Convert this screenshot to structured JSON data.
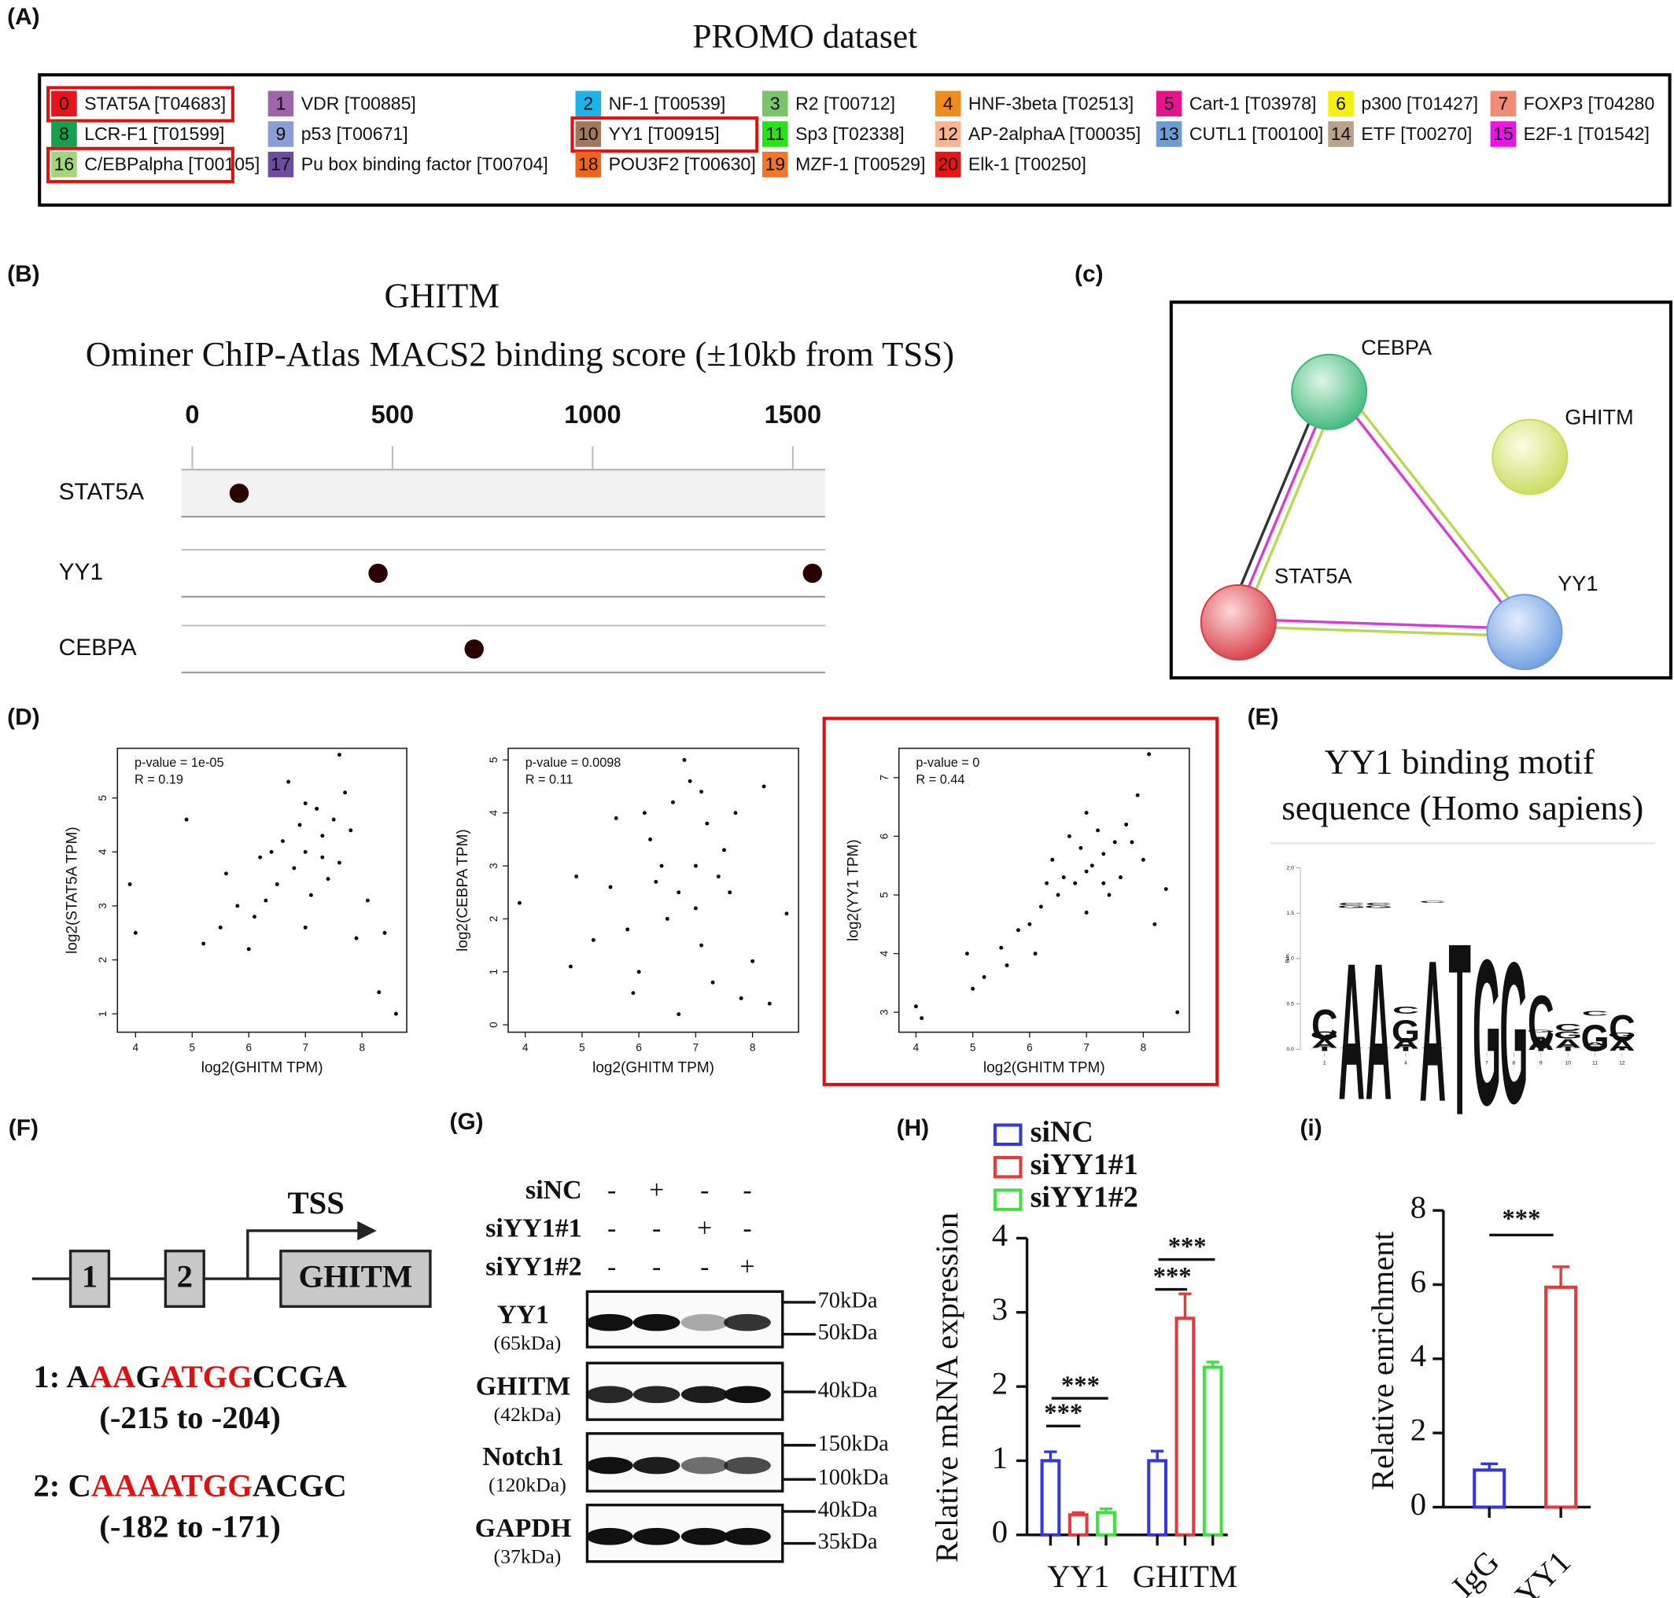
{
  "panel_labels": [
    "(A)",
    "(B)",
    "(c)",
    "(D)",
    "(E)",
    "(F)",
    "(G)",
    "(H)",
    "(i)"
  ],
  "promo": {
    "title": "PROMO dataset",
    "items": [
      {
        "number": 0,
        "label": "STAT5A [T04683]",
        "color": "#e8141c",
        "highlight": true
      },
      {
        "number": 1,
        "label": "VDR [T00885]",
        "color": "#9e65a8",
        "highlight": false
      },
      {
        "number": 2,
        "label": "NF-1 [T00539]",
        "color": "#1cb4e8",
        "highlight": false
      },
      {
        "number": 3,
        "label": "R2 [T00712]",
        "color": "#7cc46c",
        "highlight": false
      },
      {
        "number": 4,
        "label": "HNF-3beta [T02513]",
        "color": "#f08c1c",
        "highlight": false
      },
      {
        "number": 5,
        "label": "Cart-1 [T03978]",
        "color": "#e4148c",
        "highlight": false
      },
      {
        "number": 6,
        "label": "p300 [T01427]",
        "color": "#f4f014",
        "highlight": false
      },
      {
        "number": 7,
        "label": "FOXP3 [T04280",
        "color": "#f08c78",
        "highlight": false
      },
      {
        "number": 8,
        "label": "LCR-F1 [T01599]",
        "color": "#14a04c",
        "highlight": false
      },
      {
        "number": 9,
        "label": "p53 [T00671]",
        "color": "#8c9cd4",
        "highlight": false
      },
      {
        "number": 10,
        "label": "YY1 [T00915]",
        "color": "#a0785c",
        "highlight": true
      },
      {
        "number": 11,
        "label": "Sp3 [T02338]",
        "color": "#28e01c",
        "highlight": false
      },
      {
        "number": 12,
        "label": "AP-2alphaA [T00035]",
        "color": "#f8b494",
        "highlight": false
      },
      {
        "number": 13,
        "label": "CUTL1 [T00100]",
        "color": "#6c9cd4",
        "highlight": false
      },
      {
        "number": 14,
        "label": "ETF [T00270]",
        "color": "#b8a48c",
        "highlight": false
      },
      {
        "number": 15,
        "label": "E2F-1 [T01542]",
        "color": "#e814e8",
        "highlight": false
      },
      {
        "number": 16,
        "label": "C/EBPalpha [T00105]",
        "color": "#a4d47c",
        "highlight": true
      },
      {
        "number": 17,
        "label": "Pu box binding factor [T00704]",
        "color": "#6c4c9c",
        "highlight": false
      },
      {
        "number": 18,
        "label": "POU3F2 [T00630]",
        "color": "#f0641c",
        "highlight": false
      },
      {
        "number": 19,
        "label": "MZF-1 [T00529]",
        "color": "#f0782c",
        "highlight": false
      },
      {
        "number": 20,
        "label": "Elk-1 [T00250]",
        "color": "#e81414",
        "highlight": false
      }
    ]
  },
  "network": {
    "nodes": [
      {
        "label": "CEBPA",
        "color": "#3cb878"
      },
      {
        "label": "GHITM",
        "color": "#c8dc5a"
      },
      {
        "label": "STAT5A",
        "color": "#d83c44"
      },
      {
        "label": "YY1",
        "color": "#6c9ce0"
      }
    ]
  },
  "gene_diagram": {
    "exons": [
      "1",
      "2"
    ],
    "gene": "GHITM",
    "tss": "TSS",
    "sequences": [
      {
        "segments": [
          {
            "text": "1: A",
            "color": "#111111"
          },
          {
            "text": "AA",
            "color": "#e01010"
          },
          {
            "text": "G",
            "color": "#111111"
          },
          {
            "text": "ATGG",
            "color": "#e01010"
          },
          {
            "text": "CCGA",
            "color": "#111111"
          }
        ],
        "range": "(-215 to -204)"
      },
      {
        "segments": [
          {
            "text": "2: C",
            "color": "#111111"
          },
          {
            "text": "AAAATGG",
            "color": "#e01010"
          },
          {
            "text": "ACGC",
            "color": "#111111"
          }
        ],
        "range": "(-182 to -171)"
      }
    ]
  },
  "western": {
    "treatments": [
      {
        "name": "siNC",
        "signs": [
          "-",
          "+",
          "-",
          "-"
        ]
      },
      {
        "name": "siYY1#1",
        "signs": [
          "-",
          "-",
          "+",
          "-"
        ]
      },
      {
        "name": "siYY1#2",
        "signs": [
          "-",
          "-",
          "-",
          "+"
        ]
      }
    ],
    "blots": [
      {
        "protein": "YY1",
        "size": "(65kDa)",
        "markers": [
          "70kDa",
          "50kDa"
        ]
      },
      {
        "protein": "GHITM",
        "size": "(42kDa)",
        "markers": [
          "40kDa"
        ]
      },
      {
        "protein": "Notch1",
        "size": "(120kDa)",
        "markers": [
          "150kDa",
          "100kDa"
        ]
      },
      {
        "protein": "GAPDH",
        "size": "(37kDa)",
        "markers": [
          "40kDa",
          "35kDa"
        ]
      }
    ]
  },
  "chart_data": [
    {
      "type": "dot",
      "title": "GHITM",
      "subtitle": "Ominer ChIP-Atlas MACS2 binding score (±10kb from TSS)",
      "xlim": [
        -27,
        1581
      ],
      "xticks": [
        0,
        500,
        1000,
        1500
      ],
      "color": "#2a0000",
      "series": [
        {
          "name": "STAT5A",
          "values": [
            117
          ]
        },
        {
          "name": "YY1",
          "values": [
            464,
            1549
          ]
        },
        {
          "name": "CEBPA",
          "values": [
            704
          ]
        }
      ]
    },
    {
      "type": "scatter",
      "xlabel": "log2(GHITM TPM)",
      "ylabel": "log2(STAT5A TPM)",
      "annotations": [
        "p-value = 1e-05",
        "R = 0.19"
      ],
      "xlim": [
        3.68,
        8.79
      ],
      "ylim": [
        0.66,
        5.92
      ],
      "xticks": [
        4,
        5,
        6,
        7,
        8
      ],
      "yticks": [
        1,
        2,
        3,
        4,
        5
      ],
      "color": "#000000",
      "x": [
        7.0,
        6.8,
        7.3,
        6.5,
        7.5,
        6.2,
        7.1,
        7.6,
        6.9,
        5.8,
        7.2,
        6.6,
        8.1,
        5.5,
        7.9,
        6.0,
        7.7,
        4.9,
        3.9,
        8.3,
        8.6,
        5.2,
        7.4,
        6.4,
        7.0,
        6.3,
        7.8,
        5.6,
        8.4,
        4.0,
        6.7,
        7.6,
        7.0,
        6.1,
        7.3
      ],
      "values": [
        4.0,
        3.7,
        4.3,
        3.4,
        4.6,
        3.9,
        3.2,
        3.8,
        4.5,
        3.0,
        4.8,
        4.2,
        3.1,
        2.6,
        2.4,
        2.2,
        5.1,
        4.6,
        3.4,
        1.4,
        1.0,
        2.3,
        3.5,
        4.0,
        2.6,
        3.1,
        4.4,
        3.6,
        2.5,
        2.5,
        5.3,
        5.8,
        4.9,
        2.8,
        3.9
      ]
    },
    {
      "type": "scatter",
      "xlabel": "log2(GHITM TPM)",
      "ylabel": "log2(CEBPA TPM)",
      "annotations": [
        "p-value = 0.0098",
        "R = 0.11"
      ],
      "xlim": [
        3.7,
        8.81
      ],
      "ylim": [
        -0.14,
        5.22
      ],
      "xticks": [
        4,
        5,
        6,
        7,
        8
      ],
      "yticks": [
        0,
        1,
        2,
        3,
        4,
        5
      ],
      "color": "#000000",
      "x": [
        7.0,
        6.7,
        7.2,
        6.5,
        7.4,
        6.2,
        7.1,
        6.9,
        5.8,
        7.5,
        6.6,
        8.0,
        5.5,
        6.0,
        7.7,
        4.9,
        3.9,
        8.6,
        5.2,
        7.3,
        6.4,
        6.8,
        7.0,
        6.3,
        7.8,
        5.6,
        8.3,
        4.8,
        6.7,
        7.6,
        7.1,
        6.1,
        5.9,
        8.2
      ],
      "values": [
        3.0,
        2.5,
        3.8,
        2.0,
        2.8,
        3.5,
        1.5,
        4.6,
        1.8,
        3.3,
        4.2,
        1.2,
        2.6,
        1.0,
        4.0,
        2.8,
        2.3,
        2.1,
        1.6,
        0.8,
        3.0,
        5.0,
        2.2,
        2.7,
        0.5,
        3.9,
        0.4,
        1.1,
        0.2,
        2.5,
        4.4,
        4.0,
        0.6,
        4.5
      ]
    },
    {
      "type": "scatter",
      "xlabel": "log2(GHITM TPM)",
      "ylabel": "log2(YY1 TPM)",
      "annotations": [
        "p-value = 0",
        "R = 0.44"
      ],
      "xlim": [
        3.7,
        8.81
      ],
      "ylim": [
        2.66,
        7.5
      ],
      "xticks": [
        4,
        5,
        6,
        7,
        8
      ],
      "yticks": [
        3,
        4,
        5,
        6,
        7
      ],
      "color": "#000000",
      "x": [
        7.0,
        6.8,
        7.3,
        6.5,
        7.5,
        6.2,
        7.1,
        7.6,
        6.9,
        5.8,
        7.2,
        6.6,
        8.0,
        5.5,
        7.9,
        6.0,
        7.7,
        4.9,
        4.0,
        8.4,
        8.6,
        5.2,
        7.4,
        6.4,
        7.0,
        6.3,
        7.8,
        5.6,
        8.2,
        4.1,
        6.7,
        8.1,
        7.0,
        6.1,
        7.3,
        5.0
      ],
      "values": [
        5.4,
        5.2,
        5.7,
        5.0,
        5.9,
        4.8,
        5.5,
        5.3,
        5.8,
        4.4,
        6.1,
        5.3,
        5.6,
        4.1,
        6.7,
        4.5,
        6.2,
        4.0,
        3.1,
        5.1,
        3.0,
        3.6,
        5.0,
        5.6,
        4.7,
        5.2,
        5.9,
        3.8,
        4.5,
        2.9,
        6.0,
        7.4,
        6.4,
        4.0,
        5.2,
        3.4
      ]
    },
    {
      "type": "grouped_bar",
      "ylabel": "Relative mRNA expression",
      "categories": [
        "YY1",
        "GHITM"
      ],
      "ylim": [
        0,
        4
      ],
      "yticks": [
        0,
        1,
        2,
        3,
        4
      ],
      "annotations": [
        "***",
        "***",
        "***",
        "***"
      ],
      "series": [
        {
          "name": "siNC",
          "color": "#3636d9",
          "values": [
            1.0,
            1.0
          ],
          "errors": [
            0.12,
            0.13
          ]
        },
        {
          "name": "siYY1#1",
          "color": "#e33b3b",
          "values": [
            0.27,
            2.92
          ],
          "errors": [
            0.03,
            0.33
          ]
        },
        {
          "name": "siYY1#2",
          "color": "#3ee23e",
          "values": [
            0.3,
            2.26
          ],
          "errors": [
            0.05,
            0.07
          ]
        }
      ]
    },
    {
      "type": "bar",
      "ylabel": "Relative enrichment",
      "categories": [
        "IgG",
        "YY1"
      ],
      "colors": [
        "#3636d9",
        "#e33b3b"
      ],
      "values": [
        1.0,
        5.93
      ],
      "errors": [
        0.17,
        0.55
      ],
      "ylim": [
        0,
        8
      ],
      "yticks": [
        0,
        2,
        4,
        6,
        8
      ],
      "annotations": [
        "***"
      ]
    },
    {
      "type": "logo",
      "title": "YY1 binding motif",
      "subtitle": "sequence (Homo sapiens)",
      "ylabel": "Bits",
      "xlim": [
        0.5,
        12.5
      ],
      "xticks": [
        1,
        2,
        3,
        4,
        5,
        6,
        7,
        8,
        9,
        10,
        11,
        12
      ],
      "ylim": [
        0,
        2
      ],
      "yticks": [
        {
          "value": 0,
          "label": "0.0"
        },
        {
          "value": 0.5,
          "label": "0.5"
        },
        {
          "value": 1,
          "label": "1.0"
        },
        {
          "value": 1.5,
          "label": "1.5"
        },
        {
          "value": 2,
          "label": "2.0"
        }
      ],
      "series": [
        {
          "name": "T",
          "color": "#e02030",
          "values": [
            0.05,
            0.02,
            0.02,
            0.05,
            0.02,
            1.95,
            0,
            0,
            0.05,
            0.05,
            0.05,
            0.03
          ]
        },
        {
          "name": "A",
          "color": "#1aa31a",
          "values": [
            0.1,
            1.55,
            1.55,
            0.12,
            1.6,
            0,
            0,
            0,
            0.15,
            0.1,
            0.04,
            0.12
          ]
        },
        {
          "name": "G",
          "color": "#f0a022",
          "values": [
            0.08,
            0.03,
            0.03,
            0.25,
            0,
            0,
            1.65,
            1.6,
            0.03,
            0.08,
            0.3,
            0.05
          ]
        },
        {
          "name": "C",
          "color": "#2a6fbf",
          "values": [
            0.35,
            0.03,
            0.03,
            0.08,
            0.02,
            0,
            0,
            0,
            0.6,
            0.08,
            0.05,
            0.3
          ]
        }
      ]
    }
  ]
}
